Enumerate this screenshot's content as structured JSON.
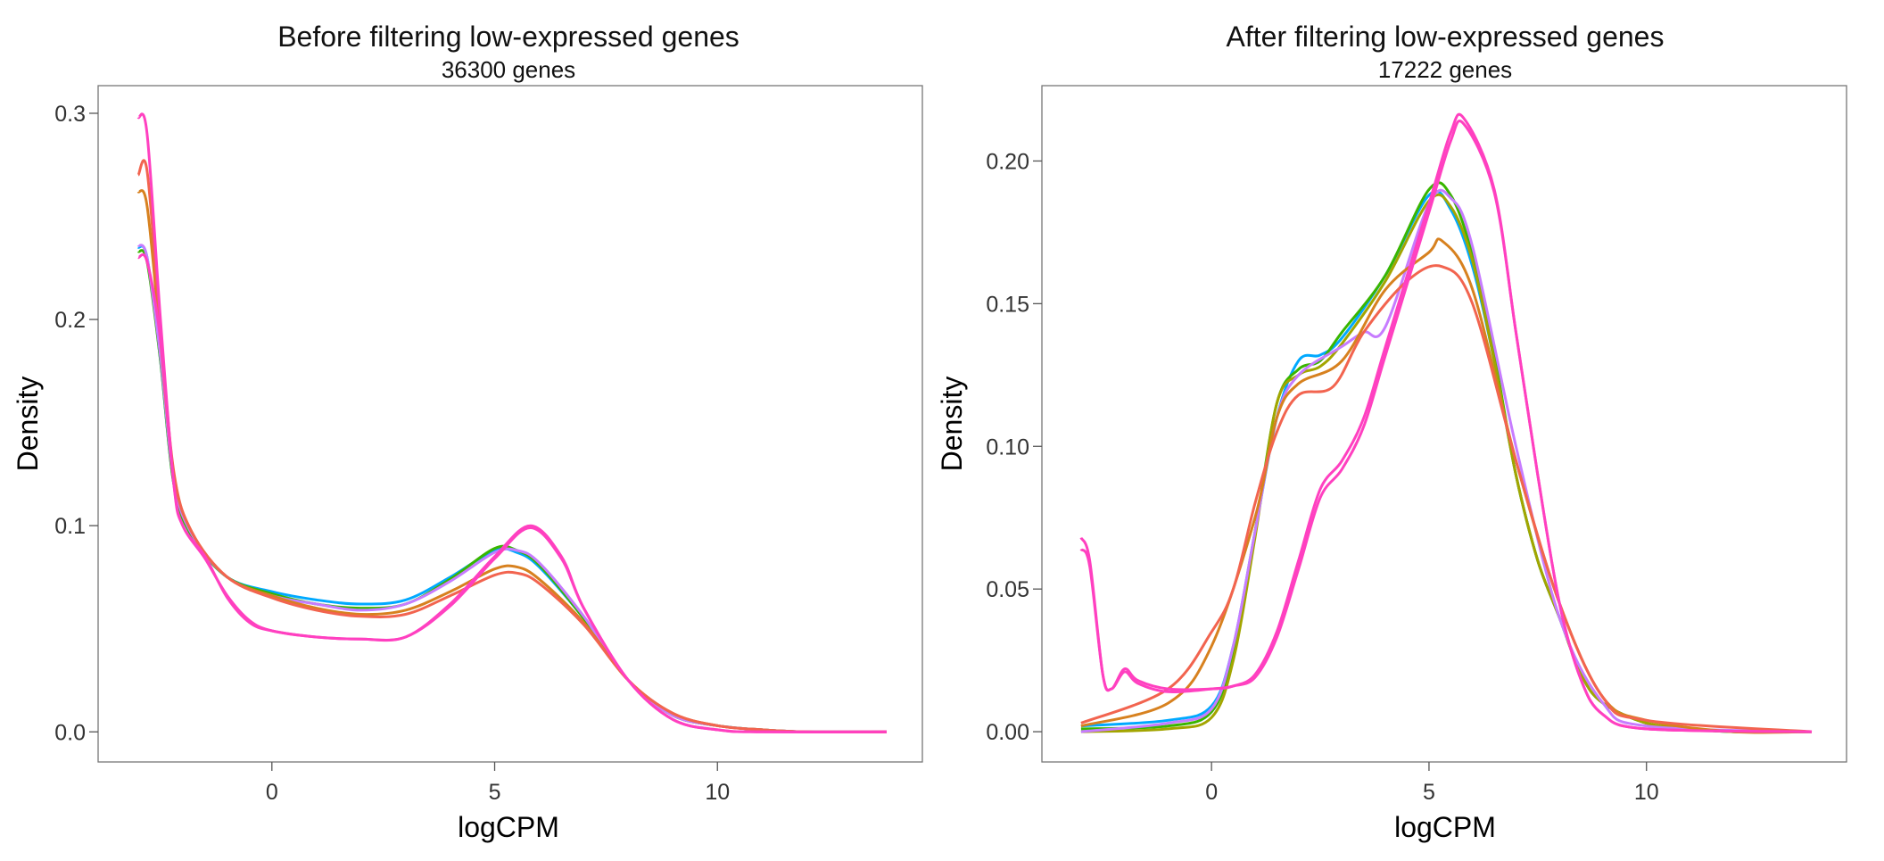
{
  "chart_data": [
    {
      "type": "line",
      "title": "Before filtering low-expressed genes",
      "subtitle": "36300 genes",
      "xlabel": "logCPM",
      "ylabel": "Density",
      "xlim": [
        -3.9,
        14.6
      ],
      "ylim": [
        -0.0146,
        0.3134
      ],
      "xticks": [
        "0",
        "5",
        "10"
      ],
      "xtick_values": [
        0,
        5,
        10
      ],
      "yticks": [
        "0.0",
        "0.1",
        "0.2",
        "0.3"
      ],
      "ytick_values": [
        0,
        0.1,
        0.2,
        0.3
      ],
      "grid": false,
      "legend": "none",
      "series": [
        {
          "color": "#00A9FF",
          "x": [
            -3,
            -2.8,
            -2.5,
            -2.2,
            -1.8,
            -1,
            0,
            1,
            2,
            3,
            4,
            5,
            5.5,
            6,
            7,
            8,
            9,
            10,
            11,
            12,
            13.8
          ],
          "y": [
            0.235,
            0.23,
            0.18,
            0.12,
            0.095,
            0.075,
            0.068,
            0.064,
            0.062,
            0.064,
            0.075,
            0.088,
            0.087,
            0.08,
            0.055,
            0.025,
            0.008,
            0.003,
            0.001,
            0,
            0
          ]
        },
        {
          "color": "#39B600",
          "x": [
            -3,
            -2.8,
            -2.5,
            -2.2,
            -1.8,
            -1,
            0,
            1,
            2,
            3,
            4,
            5,
            5.5,
            6,
            7,
            8,
            9,
            10,
            11,
            12,
            13.8
          ],
          "y": [
            0.233,
            0.228,
            0.18,
            0.12,
            0.095,
            0.075,
            0.067,
            0.062,
            0.06,
            0.062,
            0.074,
            0.089,
            0.088,
            0.081,
            0.055,
            0.025,
            0.008,
            0.003,
            0.001,
            0,
            0
          ]
        },
        {
          "color": "#C77CFF",
          "x": [
            -3,
            -2.8,
            -2.5,
            -2.2,
            -1.8,
            -1,
            0,
            1,
            2,
            3,
            4,
            5,
            5.5,
            6,
            7,
            8,
            9,
            10,
            11,
            12,
            13.8
          ],
          "y": [
            0.236,
            0.23,
            0.182,
            0.122,
            0.096,
            0.075,
            0.066,
            0.062,
            0.059,
            0.062,
            0.073,
            0.087,
            0.088,
            0.082,
            0.056,
            0.025,
            0.008,
            0.003,
            0.001,
            0,
            0
          ]
        },
        {
          "color": "#D7811F",
          "x": [
            -3,
            -2.8,
            -2.5,
            -2.2,
            -1.8,
            -1,
            0,
            1,
            2,
            3,
            4,
            5,
            5.5,
            6,
            7,
            8,
            9,
            10,
            11,
            12,
            13.8
          ],
          "y": [
            0.262,
            0.255,
            0.19,
            0.125,
            0.097,
            0.075,
            0.066,
            0.06,
            0.057,
            0.059,
            0.068,
            0.079,
            0.08,
            0.074,
            0.053,
            0.025,
            0.009,
            0.003,
            0.001,
            0,
            0
          ]
        },
        {
          "color": "#F2644F",
          "x": [
            -3,
            -2.8,
            -2.5,
            -2.2,
            -1.8,
            -1,
            0,
            1,
            2,
            3,
            4,
            5,
            5.5,
            6,
            7,
            8,
            9,
            10,
            11,
            12,
            13.8
          ],
          "y": [
            0.27,
            0.272,
            0.195,
            0.126,
            0.097,
            0.075,
            0.065,
            0.059,
            0.056,
            0.057,
            0.066,
            0.076,
            0.077,
            0.072,
            0.052,
            0.025,
            0.009,
            0.003,
            0.001,
            0,
            0
          ]
        },
        {
          "color": "#FF40C0",
          "x": [
            -3,
            -2.8,
            -2.5,
            -2.2,
            -2,
            -1.5,
            -1,
            -0.5,
            0,
            1,
            2,
            3,
            4,
            5,
            5.8,
            6.5,
            7,
            8,
            9,
            10,
            11,
            13.8
          ],
          "y": [
            0.298,
            0.29,
            0.2,
            0.12,
            0.1,
            0.085,
            0.065,
            0.053,
            0.049,
            0.046,
            0.045,
            0.046,
            0.062,
            0.085,
            0.1,
            0.085,
            0.06,
            0.025,
            0.006,
            0.001,
            0,
            0
          ]
        },
        {
          "color": "#FF40C0",
          "x": [
            -3,
            -2.8,
            -2.5,
            -2.2,
            -2,
            -1.5,
            -1,
            -0.5,
            0,
            1,
            2,
            3,
            4,
            5,
            5.8,
            6.5,
            7,
            8,
            9,
            10,
            11,
            13.8
          ],
          "y": [
            0.23,
            0.228,
            0.19,
            0.12,
            0.1,
            0.084,
            0.066,
            0.054,
            0.049,
            0.046,
            0.045,
            0.046,
            0.061,
            0.084,
            0.099,
            0.084,
            0.06,
            0.025,
            0.006,
            0.001,
            0,
            0
          ]
        }
      ]
    },
    {
      "type": "line",
      "title": "After filtering low-expressed genes",
      "subtitle": "17222 genes",
      "xlabel": "logCPM",
      "ylabel": "Density",
      "xlim": [
        -3.9,
        14.6
      ],
      "ylim": [
        -0.0106,
        0.2264
      ],
      "xticks": [
        "0",
        "5",
        "10"
      ],
      "xtick_values": [
        0,
        5,
        10
      ],
      "yticks": [
        "0.00",
        "0.05",
        "0.10",
        "0.15",
        "0.20"
      ],
      "ytick_values": [
        0,
        0.05,
        0.1,
        0.15,
        0.2
      ],
      "grid": false,
      "legend": "none",
      "series": [
        {
          "color": "#00A9FF",
          "x": [
            -3,
            -1,
            0,
            0.5,
            1,
            1.5,
            2,
            2.5,
            3,
            4,
            5,
            5.5,
            6,
            6.5,
            7,
            7.5,
            8,
            8.5,
            9,
            10,
            11,
            12,
            13.8
          ],
          "y": [
            0.002,
            0.004,
            0.009,
            0.03,
            0.07,
            0.11,
            0.13,
            0.132,
            0.138,
            0.16,
            0.188,
            0.183,
            0.163,
            0.13,
            0.09,
            0.06,
            0.04,
            0.02,
            0.01,
            0.003,
            0.001,
            0,
            0
          ]
        },
        {
          "color": "#39B600",
          "x": [
            -3,
            -1,
            0,
            0.5,
            1,
            1.5,
            2,
            2.5,
            3,
            4,
            5,
            5.5,
            6,
            6.5,
            7,
            7.5,
            8,
            8.5,
            9,
            10,
            11,
            12,
            13.8
          ],
          "y": [
            0.001,
            0.002,
            0.007,
            0.028,
            0.07,
            0.115,
            0.127,
            0.13,
            0.14,
            0.16,
            0.19,
            0.188,
            0.167,
            0.132,
            0.09,
            0.06,
            0.04,
            0.02,
            0.01,
            0.003,
            0.001,
            0,
            0
          ]
        },
        {
          "color": "#A3A500",
          "x": [
            -3,
            -1,
            0,
            0.5,
            1,
            1.5,
            2,
            2.5,
            3,
            4,
            5,
            5.5,
            6,
            6.5,
            7,
            7.5,
            8,
            8.5,
            9,
            10,
            11,
            12,
            13.8
          ],
          "y": [
            0,
            0.001,
            0.005,
            0.025,
            0.068,
            0.115,
            0.125,
            0.128,
            0.136,
            0.158,
            0.186,
            0.184,
            0.165,
            0.13,
            0.09,
            0.06,
            0.04,
            0.02,
            0.01,
            0.003,
            0.001,
            0,
            0
          ]
        },
        {
          "color": "#C77CFF",
          "x": [
            -3,
            -1,
            0,
            0.5,
            1,
            1.5,
            2,
            3,
            3.5,
            4,
            5,
            5.5,
            6,
            7,
            8,
            9,
            10,
            13.8
          ],
          "y": [
            0,
            0.003,
            0.008,
            0.03,
            0.07,
            0.11,
            0.125,
            0.135,
            0.14,
            0.142,
            0.185,
            0.187,
            0.17,
            0.1,
            0.04,
            0.01,
            0.002,
            0
          ]
        },
        {
          "color": "#D7811F",
          "x": [
            -3,
            -1,
            0,
            1,
            1.5,
            2,
            3,
            4,
            5,
            5.3,
            6,
            7,
            8,
            9,
            10,
            12,
            13.8
          ],
          "y": [
            0.002,
            0.01,
            0.03,
            0.075,
            0.11,
            0.122,
            0.13,
            0.155,
            0.168,
            0.172,
            0.155,
            0.095,
            0.045,
            0.012,
            0.004,
            0,
            0
          ]
        },
        {
          "color": "#F2644F",
          "x": [
            -3,
            -1,
            0,
            0.5,
            1,
            1.5,
            2,
            2.8,
            3.5,
            4.5,
            5.3,
            6,
            7,
            8,
            9,
            10,
            13.8
          ],
          "y": [
            0.003,
            0.015,
            0.035,
            0.05,
            0.08,
            0.105,
            0.118,
            0.121,
            0.14,
            0.158,
            0.163,
            0.15,
            0.095,
            0.045,
            0.012,
            0.004,
            0
          ]
        },
        {
          "color": "#FF40C0",
          "x": [
            -3,
            -2.8,
            -2.5,
            -2.3,
            -2,
            -1.7,
            -1,
            0,
            0.5,
            1,
            1.5,
            2,
            2.5,
            3,
            3.5,
            4,
            5,
            5.5,
            5.8,
            6.5,
            7,
            7.5,
            8,
            8.5,
            9,
            10,
            13.8
          ],
          "y": [
            0.068,
            0.06,
            0.02,
            0.015,
            0.022,
            0.018,
            0.015,
            0.015,
            0.016,
            0.02,
            0.035,
            0.06,
            0.085,
            0.095,
            0.11,
            0.135,
            0.185,
            0.21,
            0.215,
            0.19,
            0.14,
            0.09,
            0.045,
            0.018,
            0.006,
            0.001,
            0
          ]
        },
        {
          "color": "#FF40C0",
          "x": [
            -3,
            -2.8,
            -2.5,
            -2.3,
            -2,
            -1.7,
            -1,
            0,
            0.5,
            1,
            1.5,
            2,
            2.5,
            3,
            3.5,
            4,
            5,
            5.5,
            5.8,
            6.5,
            7,
            7.5,
            8,
            8.5,
            9,
            10,
            13.8
          ],
          "y": [
            0.064,
            0.058,
            0.02,
            0.015,
            0.021,
            0.017,
            0.014,
            0.015,
            0.016,
            0.019,
            0.033,
            0.057,
            0.082,
            0.092,
            0.107,
            0.132,
            0.182,
            0.207,
            0.213,
            0.189,
            0.14,
            0.09,
            0.045,
            0.018,
            0.006,
            0.001,
            0
          ]
        }
      ]
    }
  ]
}
